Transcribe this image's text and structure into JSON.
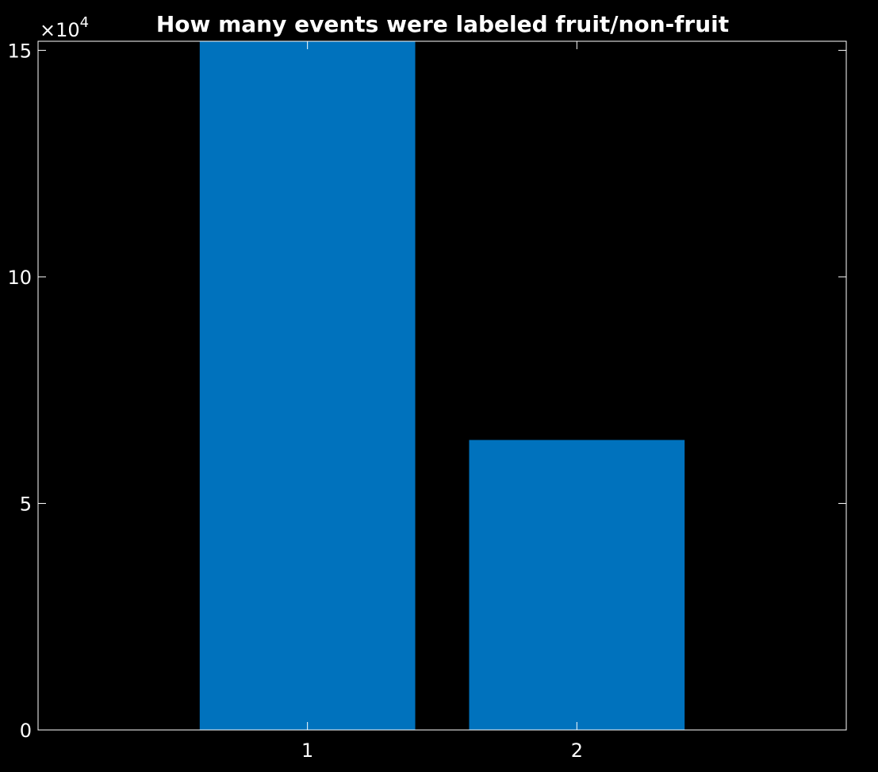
{
  "chart_data": {
    "type": "bar",
    "title": "How many events were labeled fruit/non-fruit",
    "categories": [
      "1",
      "2"
    ],
    "x": [
      1,
      2
    ],
    "values": [
      152000,
      64000
    ],
    "xlim": [
      0,
      3
    ],
    "ylim": [
      0,
      152000
    ],
    "yticks": [
      0,
      50000,
      100000,
      150000
    ],
    "ytick_labels": [
      "0",
      "5",
      "10",
      "15"
    ],
    "y_exponent_label": {
      "base": "×10",
      "power": "4"
    },
    "xlabel": "",
    "ylabel": "",
    "grid": false,
    "bar_color": "#0072bd",
    "axis_color": "#ffffff",
    "background": "#000000"
  }
}
